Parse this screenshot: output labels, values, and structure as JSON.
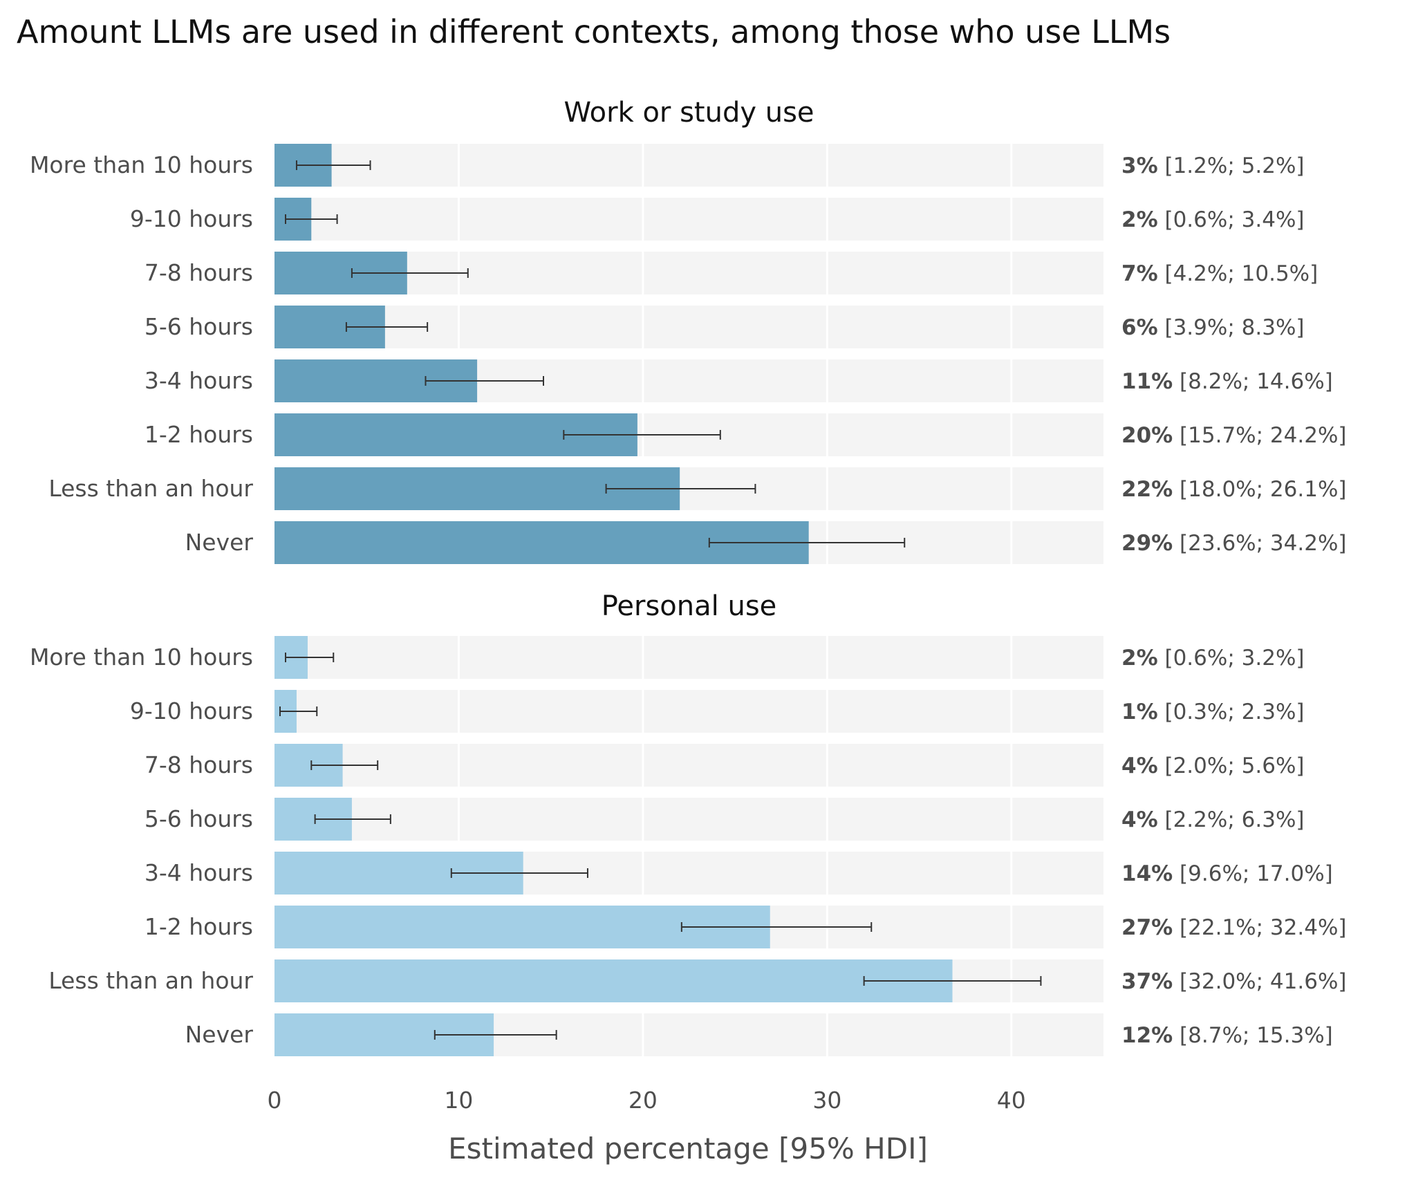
{
  "chart_data": {
    "type": "bar",
    "orientation": "horizontal",
    "title": "Amount LLMs are used in different contexts, among those who use LLMs",
    "xlabel": "Estimated percentage [95% HDI]",
    "xlim": [
      0,
      45
    ],
    "xticks": [
      0,
      10,
      20,
      30,
      40
    ],
    "grid": true,
    "categories": [
      "More than 10 hours",
      "9-10 hours",
      "7-8 hours",
      "5-6 hours",
      "3-4 hours",
      "1-2 hours",
      "Less than an hour",
      "Never"
    ],
    "panels": [
      {
        "title": "Work or study use",
        "color": "#66a0bd",
        "values": [
          3.1,
          2.0,
          7.2,
          6.0,
          11.0,
          19.7,
          22.0,
          29.0
        ],
        "lower": [
          1.2,
          0.6,
          4.2,
          3.9,
          8.2,
          15.7,
          18.0,
          23.6
        ],
        "upper": [
          5.2,
          3.4,
          10.5,
          8.3,
          14.6,
          24.2,
          26.1,
          34.2
        ],
        "labels": [
          {
            "pct": "3%",
            "hdi": "[1.2%; 5.2%]"
          },
          {
            "pct": "2%",
            "hdi": "[0.6%; 3.4%]"
          },
          {
            "pct": "7%",
            "hdi": "[4.2%; 10.5%]"
          },
          {
            "pct": "6%",
            "hdi": "[3.9%; 8.3%]"
          },
          {
            "pct": "11%",
            "hdi": "[8.2%; 14.6%]"
          },
          {
            "pct": "20%",
            "hdi": "[15.7%; 24.2%]"
          },
          {
            "pct": "22%",
            "hdi": "[18.0%; 26.1%]"
          },
          {
            "pct": "29%",
            "hdi": "[23.6%; 34.2%]"
          }
        ]
      },
      {
        "title": "Personal use",
        "color": "#a3cfe6",
        "values": [
          1.8,
          1.2,
          3.7,
          4.2,
          13.5,
          26.9,
          36.8,
          11.9
        ],
        "lower": [
          0.6,
          0.3,
          2.0,
          2.2,
          9.6,
          22.1,
          32.0,
          8.7
        ],
        "upper": [
          3.2,
          2.3,
          5.6,
          6.3,
          17.0,
          32.4,
          41.6,
          15.3
        ],
        "labels": [
          {
            "pct": "2%",
            "hdi": "[0.6%; 3.2%]"
          },
          {
            "pct": "1%",
            "hdi": "[0.3%; 2.3%]"
          },
          {
            "pct": "4%",
            "hdi": "[2.0%; 5.6%]"
          },
          {
            "pct": "4%",
            "hdi": "[2.2%; 6.3%]"
          },
          {
            "pct": "14%",
            "hdi": "[9.6%; 17.0%]"
          },
          {
            "pct": "27%",
            "hdi": "[22.1%; 32.4%]"
          },
          {
            "pct": "37%",
            "hdi": "[32.0%; 41.6%]"
          },
          {
            "pct": "12%",
            "hdi": "[8.7%; 15.3%]"
          }
        ]
      }
    ]
  }
}
